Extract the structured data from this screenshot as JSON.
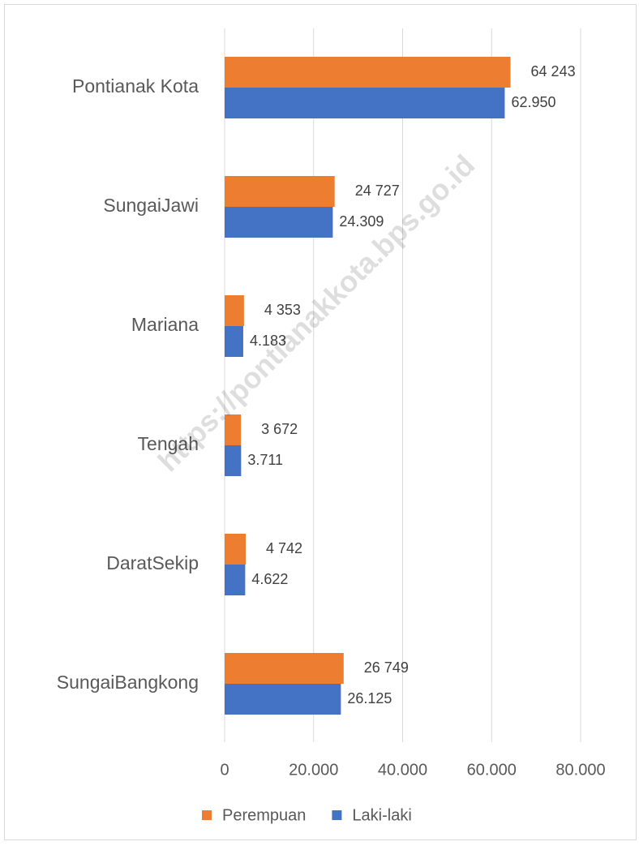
{
  "chart_data": {
    "type": "barh",
    "categories": [
      "Pontianak Kota",
      "SungaiJawi",
      "Mariana",
      "Tengah",
      "DaratSekip",
      "SungaiBangkong"
    ],
    "series": [
      {
        "name": "Perempuan",
        "color": "#ed7d31",
        "values": [
          64243,
          24727,
          4353,
          3672,
          4742,
          26749
        ],
        "value_labels": [
          "64 243",
          "24 727",
          "4 353",
          "3 672",
          "4 742",
          "26 749"
        ]
      },
      {
        "name": "Laki-laki",
        "color": "#4472c4",
        "values": [
          62950,
          24309,
          4183,
          3711,
          4622,
          26125
        ],
        "value_labels": [
          "62.950",
          "24.309",
          "4.183",
          "3.711",
          "4.622",
          "26.125"
        ]
      }
    ],
    "xlim": [
      0,
      80000
    ],
    "xticks": [
      0,
      {
        "value": 20000,
        "label": "20.000"
      },
      {
        "value": 40000,
        "label": "40.000"
      },
      {
        "value": 60000,
        "label": "60.000"
      },
      {
        "value": 80000,
        "label": "80.000"
      }
    ],
    "grid": true,
    "legend": "bottom",
    "watermark": "https://pontianakkota.bps.go.id"
  }
}
